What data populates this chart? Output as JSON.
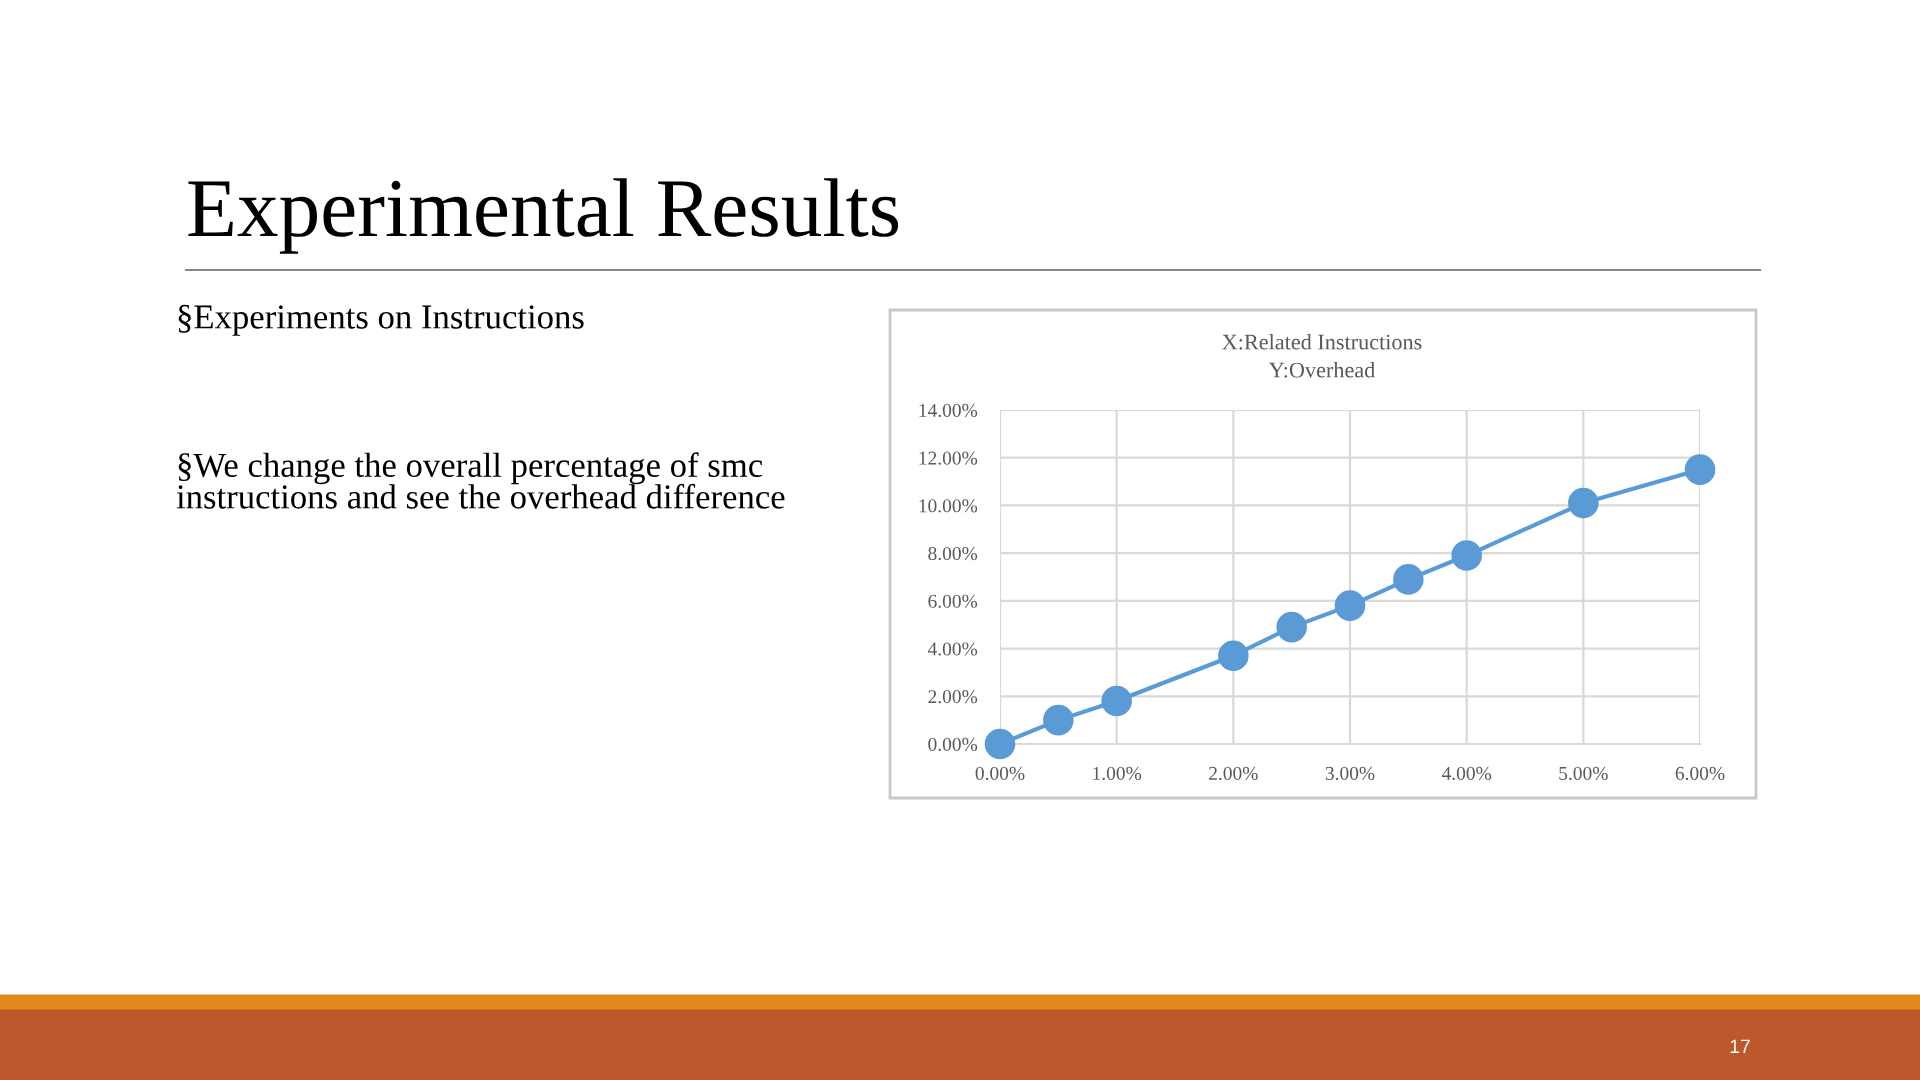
{
  "chart_data": {
    "type": "line",
    "title": "X:Related Instructions",
    "subtitle": "Y:Overhead",
    "x": [
      0,
      0.5,
      1,
      2,
      2.5,
      3,
      3.5,
      4,
      5,
      6
    ],
    "series": [
      {
        "color": "#5b9bd5",
        "values": [
          0,
          1.0,
          1.8,
          3.7,
          4.9,
          5.8,
          6.9,
          7.9,
          10.1,
          11.5
        ]
      }
    ],
    "xlim": [
      0,
      6
    ],
    "ylim": [
      0,
      14
    ],
    "xticks": [
      {
        "value": 0,
        "label": "0.00%"
      },
      {
        "value": 1,
        "label": "1.00%"
      },
      {
        "value": 2,
        "label": "2.00%"
      },
      {
        "value": 3,
        "label": "3.00%"
      },
      {
        "value": 4,
        "label": "4.00%"
      },
      {
        "value": 5,
        "label": "5.00%"
      },
      {
        "value": 6,
        "label": "6.00%"
      }
    ],
    "yticks": [
      {
        "value": 0,
        "label": "0.00%"
      },
      {
        "value": 2,
        "label": "2.00%"
      },
      {
        "value": 4,
        "label": "4.00%"
      },
      {
        "value": 6,
        "label": "6.00%"
      },
      {
        "value": 8,
        "label": "8.00%"
      },
      {
        "value": 10,
        "label": "10.00%"
      },
      {
        "value": 12,
        "label": "12.00%"
      },
      {
        "value": 14,
        "label": "14.00%"
      }
    ],
    "grid": true,
    "marker": "circle",
    "line_style": "solid",
    "annotations": [
      "Experimental Results",
      "§Experiments on Instructions",
      "§We change the overall percentage of smc\ninstructions and see the overhead difference",
      "17"
    ]
  }
}
